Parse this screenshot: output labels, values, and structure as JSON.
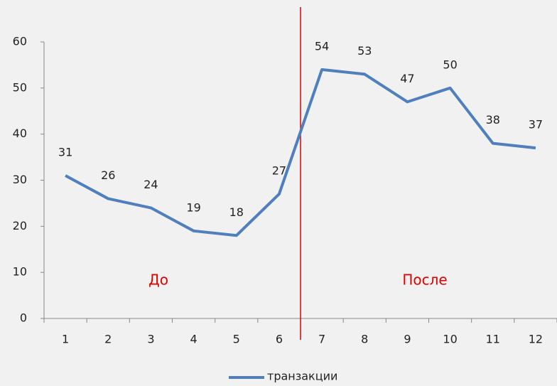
{
  "chart_data": {
    "type": "line",
    "categories": [
      "1",
      "2",
      "3",
      "4",
      "5",
      "6",
      "7",
      "8",
      "9",
      "10",
      "11",
      "12"
    ],
    "series": [
      {
        "name": "транзакции",
        "color": "#4f7fbc",
        "values": [
          31,
          26,
          24,
          19,
          18,
          27,
          54,
          53,
          47,
          50,
          38,
          37
        ]
      }
    ],
    "ylim": [
      0,
      60
    ],
    "yticks": [
      0,
      10,
      20,
      30,
      40,
      50,
      60
    ],
    "annotations": [
      "До",
      "После"
    ],
    "legend": "bottom"
  }
}
